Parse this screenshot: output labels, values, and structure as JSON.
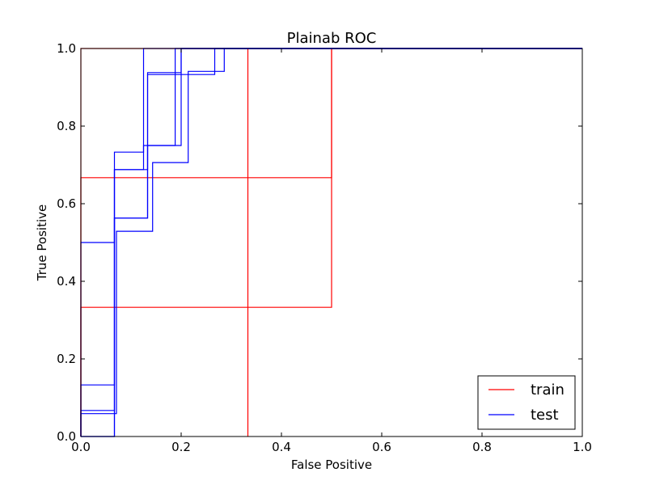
{
  "chart_data": {
    "type": "line",
    "title": "Plainab ROC",
    "xlabel": "False Positive",
    "ylabel": "True Positive",
    "xlim": [
      0,
      1
    ],
    "ylim": [
      0,
      1
    ],
    "xticks": [
      0.0,
      0.2,
      0.4,
      0.6,
      0.8,
      1.0
    ],
    "yticks": [
      0.0,
      0.2,
      0.4,
      0.6,
      0.8,
      1.0
    ],
    "tick_labels": [
      "0.0",
      "0.2",
      "0.4",
      "0.6",
      "0.8",
      "1.0"
    ],
    "grid": false,
    "legend_position": "bottom-right",
    "series": [
      {
        "name": "train",
        "color": "#ff0000",
        "curves": [
          [
            [
              0,
              0
            ],
            [
              0,
              0.333
            ],
            [
              0.5,
              0.333
            ],
            [
              0.5,
              1.0
            ],
            [
              1.0,
              1.0
            ]
          ],
          [
            [
              0,
              0
            ],
            [
              0,
              0.667
            ],
            [
              0.5,
              0.667
            ],
            [
              0.5,
              1.0
            ],
            [
              1.0,
              1.0
            ]
          ],
          [
            [
              0,
              0
            ],
            [
              0,
              1.0
            ],
            [
              0.333,
              1.0
            ],
            [
              0.333,
              0
            ],
            [
              0.333,
              1.0
            ],
            [
              1.0,
              1.0
            ]
          ]
        ]
      },
      {
        "name": "test",
        "color": "#0000ff",
        "curves": [
          [
            [
              0,
              0
            ],
            [
              0,
              0.133
            ],
            [
              0.067,
              0.133
            ],
            [
              0.067,
              0.733
            ],
            [
              0.125,
              0.733
            ],
            [
              0.125,
              1.0
            ],
            [
              1.0,
              1.0
            ]
          ],
          [
            [
              0,
              0
            ],
            [
              0,
              0.059
            ],
            [
              0.071,
              0.059
            ],
            [
              0.071,
              0.529
            ],
            [
              0.143,
              0.529
            ],
            [
              0.143,
              0.706
            ],
            [
              0.214,
              0.706
            ],
            [
              0.214,
              0.941
            ],
            [
              0.286,
              0.941
            ],
            [
              0.286,
              1.0
            ],
            [
              1.0,
              1.0
            ]
          ],
          [
            [
              0,
              0
            ],
            [
              0,
              0.5
            ],
            [
              0.067,
              0.5
            ],
            [
              0.067,
              0.688
            ],
            [
              0.133,
              0.688
            ],
            [
              0.133,
              0.938
            ],
            [
              0.2,
              0.938
            ],
            [
              0.2,
              1.0
            ],
            [
              1.0,
              1.0
            ]
          ],
          [
            [
              0,
              0
            ],
            [
              0,
              0.067
            ],
            [
              0.067,
              0.067
            ],
            [
              0.067,
              0.563
            ],
            [
              0.133,
              0.563
            ],
            [
              0.133,
              0.933
            ],
            [
              0.267,
              0.933
            ],
            [
              0.267,
              1.0
            ],
            [
              1.0,
              1.0
            ]
          ],
          [
            [
              0,
              0
            ],
            [
              0.067,
              0
            ],
            [
              0.067,
              0.688
            ],
            [
              0.125,
              0.688
            ],
            [
              0.125,
              0.75
            ],
            [
              0.188,
              0.75
            ],
            [
              0.188,
              1.0
            ],
            [
              1.0,
              1.0
            ]
          ],
          [
            [
              0,
              0
            ],
            [
              0.067,
              0
            ],
            [
              0.067,
              0.563
            ],
            [
              0.133,
              0.563
            ],
            [
              0.133,
              0.75
            ],
            [
              0.2,
              0.75
            ],
            [
              0.2,
              1.0
            ],
            [
              1.0,
              1.0
            ]
          ]
        ]
      }
    ]
  }
}
